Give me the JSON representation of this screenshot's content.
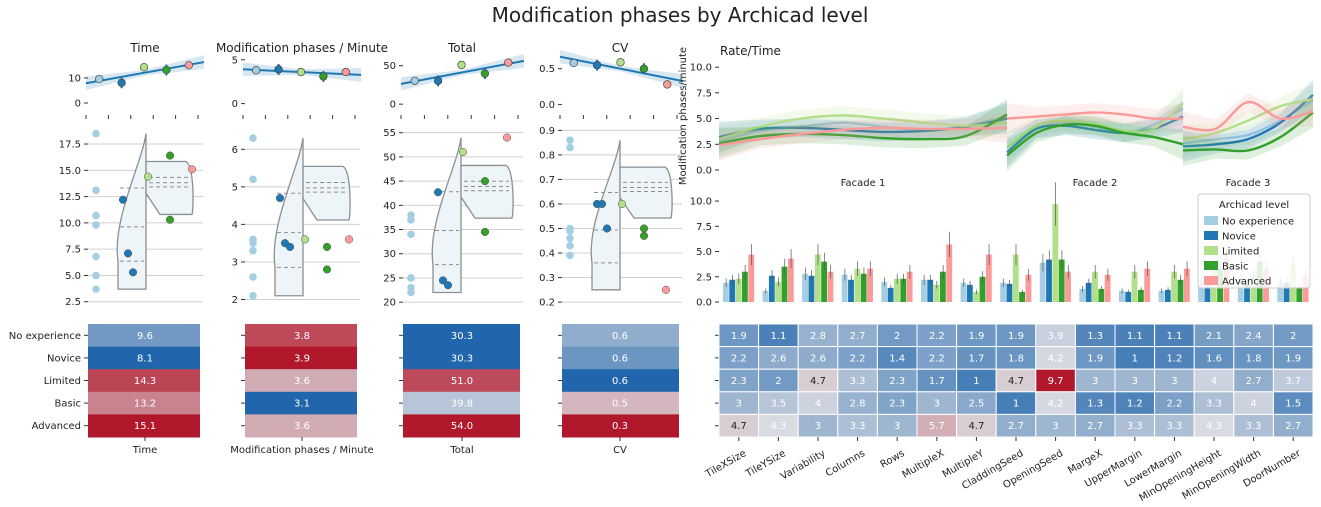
{
  "figure_title": "Modification phases by Archicad level",
  "levels": [
    "No experience",
    "Novice",
    "Limited",
    "Basic",
    "Advanced"
  ],
  "colors": {
    "No experience": "#a6cee3",
    "Novice": "#1f78b4",
    "Limited": "#b2df8a",
    "Basic": "#33a02c",
    "Advanced": "#fb9a99",
    "heat_low": "#2166ac",
    "heat_mid": "#dcdde3",
    "heat_high": "#b2182b",
    "trend": "#1f78b4",
    "violin_fill": "#eef5f8",
    "violin_edge": "#8a8f93"
  },
  "chart_data": [
    {
      "type": "line",
      "panel": "trend-time",
      "title": "Time",
      "x": [
        "No experience",
        "Novice",
        "Limited",
        "Basic",
        "Advanced"
      ],
      "y": [
        9.6,
        8.1,
        14.3,
        13.2,
        15.1
      ],
      "ylim": [
        -2,
        18
      ],
      "yticks": [
        0,
        10
      ]
    },
    {
      "type": "line",
      "panel": "trend-rate",
      "title": "Modification phases / Minute",
      "x": [
        "No experience",
        "Novice",
        "Limited",
        "Basic",
        "Advanced"
      ],
      "y": [
        3.8,
        3.9,
        3.6,
        3.1,
        3.6
      ],
      "ylim": [
        -0.5,
        5.2
      ],
      "yticks": [
        0,
        5
      ]
    },
    {
      "type": "line",
      "panel": "trend-total",
      "title": "Total",
      "x": [
        "No experience",
        "Novice",
        "Limited",
        "Basic",
        "Advanced"
      ],
      "y": [
        30.3,
        30.3,
        51.0,
        39.8,
        54.0
      ],
      "ylim": [
        -5,
        60
      ],
      "yticks": [
        0,
        50
      ]
    },
    {
      "type": "line",
      "panel": "trend-cv",
      "title": "CV",
      "x": [
        "No experience",
        "Novice",
        "Limited",
        "Basic",
        "Advanced"
      ],
      "y": [
        0.58,
        0.55,
        0.59,
        0.5,
        0.28
      ],
      "ylim": [
        -0.05,
        0.65
      ],
      "yticks": [
        0.0,
        0.5
      ],
      "ytick_labels": [
        "0.0",
        "0.5"
      ]
    },
    {
      "type": "scatter",
      "panel": "dist-time",
      "ylim": [
        2,
        19.5
      ],
      "yticks": [
        2.5,
        5.0,
        7.5,
        10.0,
        12.5,
        15.0,
        17.5
      ],
      "ytick_labels": [
        "2.5",
        "5.0",
        "7.5",
        "10.0",
        "12.5",
        "15.0",
        "17.5"
      ],
      "points": {
        "No experience": [
          18.5,
          13.1,
          10.7,
          9.8,
          6.8,
          5.0,
          3.7
        ],
        "Novice": [
          12.2,
          7.1,
          5.3
        ],
        "Limited": [
          14.4
        ],
        "Basic": [
          16.4,
          10.3
        ],
        "Advanced": [
          15.1
        ]
      }
    },
    {
      "type": "scatter",
      "panel": "dist-rate",
      "ylim": [
        1.8,
        6.7
      ],
      "yticks": [
        2,
        3,
        4,
        5,
        6
      ],
      "ytick_labels": [
        "2",
        "3",
        "4",
        "5",
        "6"
      ],
      "points": {
        "No experience": [
          6.3,
          5.2,
          3.5,
          3.3,
          2.6,
          2.1,
          3.6
        ],
        "Novice": [
          4.7,
          3.5,
          3.4
        ],
        "Limited": [
          3.6
        ],
        "Basic": [
          3.4,
          2.8
        ],
        "Advanced": [
          3.6
        ]
      }
    },
    {
      "type": "scatter",
      "panel": "dist-total",
      "ylim": [
        19,
        57
      ],
      "yticks": [
        20,
        25,
        30,
        35,
        40,
        45,
        50,
        55
      ],
      "ytick_labels": [
        "20",
        "25",
        "30",
        "35",
        "40",
        "45",
        "50",
        "55"
      ],
      "points": {
        "No experience": [
          38,
          37,
          34,
          25,
          22,
          23
        ],
        "Novice": [
          42.7,
          24.5,
          23.5
        ],
        "Limited": [
          51
        ],
        "Basic": [
          45,
          34.5
        ],
        "Advanced": [
          54
        ]
      }
    },
    {
      "type": "scatter",
      "panel": "dist-cv",
      "ylim": [
        0.18,
        0.93
      ],
      "yticks": [
        0.2,
        0.3,
        0.4,
        0.5,
        0.6,
        0.7,
        0.8,
        0.9
      ],
      "ytick_labels": [
        "0.2",
        "0.3",
        "0.4",
        "0.5",
        "0.6",
        "0.7",
        "0.8",
        "0.9"
      ],
      "points": {
        "No experience": [
          0.86,
          0.83,
          0.5,
          0.49,
          0.46,
          0.43,
          0.39
        ],
        "Novice": [
          0.6,
          0.6,
          0.5
        ],
        "Limited": [
          0.6
        ],
        "Basic": [
          0.5,
          0.47
        ],
        "Advanced": [
          0.25
        ]
      }
    },
    {
      "type": "heatmap",
      "panel": "heat-time",
      "xlabel": "Time",
      "rows": [
        "No experience",
        "Novice",
        "Limited",
        "Basic",
        "Advanced"
      ],
      "values": [
        [
          9.6
        ],
        [
          8.1
        ],
        [
          14.3
        ],
        [
          13.2
        ],
        [
          15.1
        ]
      ],
      "labels": [
        [
          "9.6"
        ],
        [
          "8.1"
        ],
        [
          "14.3"
        ],
        [
          "13.2"
        ],
        [
          "15.1"
        ]
      ]
    },
    {
      "type": "heatmap",
      "panel": "heat-rate",
      "xlabel": "Modification phases / Minute",
      "rows": [
        "No experience",
        "Novice",
        "Limited",
        "Basic",
        "Advanced"
      ],
      "values": [
        [
          3.8
        ],
        [
          3.9
        ],
        [
          3.6
        ],
        [
          3.1
        ],
        [
          3.6
        ]
      ],
      "labels": [
        [
          "3.8"
        ],
        [
          "3.9"
        ],
        [
          "3.6"
        ],
        [
          "3.1"
        ],
        [
          "3.6"
        ]
      ]
    },
    {
      "type": "heatmap",
      "panel": "heat-total",
      "xlabel": "Total",
      "rows": [
        "No experience",
        "Novice",
        "Limited",
        "Basic",
        "Advanced"
      ],
      "values": [
        [
          30.3
        ],
        [
          30.3
        ],
        [
          51.0
        ],
        [
          39.8
        ],
        [
          54.0
        ]
      ],
      "labels": [
        [
          "30.3"
        ],
        [
          "30.3"
        ],
        [
          "51.0"
        ],
        [
          "39.8"
        ],
        [
          "54.0"
        ]
      ]
    },
    {
      "type": "heatmap",
      "panel": "heat-cv",
      "xlabel": "CV",
      "rows": [
        "No experience",
        "Novice",
        "Limited",
        "Basic",
        "Advanced"
      ],
      "values": [
        [
          0.6
        ],
        [
          0.6
        ],
        [
          0.6
        ],
        [
          0.5
        ],
        [
          0.3
        ]
      ],
      "shading": [
        [
          0.3
        ],
        [
          0.2
        ],
        [
          0.0
        ],
        [
          0.6
        ],
        [
          1.0
        ]
      ],
      "labels": [
        [
          "0.6"
        ],
        [
          "0.6"
        ],
        [
          "0.6"
        ],
        [
          "0.5"
        ],
        [
          "0.3"
        ]
      ]
    },
    {
      "type": "line",
      "panel": "rate-curves",
      "title": "Rate/Time",
      "ylabel": "Modification phases/minute",
      "facets": [
        "Facade 1",
        "Facade 2",
        "Facade 3"
      ],
      "ylim": [
        0,
        10.5
      ],
      "yticks": [
        0.0,
        2.5,
        5.0,
        7.5,
        10.0
      ],
      "ytick_labels": [
        "0.0",
        "2.5",
        "5.0",
        "7.5",
        "10.0"
      ],
      "series": [
        {
          "level": "No experience",
          "values": [
            [
              2.8,
              3.8,
              4.2,
              4.6,
              4.2,
              3.9,
              4.3,
              5.2
            ],
            [
              2.2,
              4.0,
              4.6,
              4.2,
              3.6,
              4.4,
              6.0
            ],
            [
              2.6,
              3.0,
              3.4,
              4.8,
              6.8
            ]
          ]
        },
        {
          "level": "Novice",
          "values": [
            [
              3.2,
              4.0,
              4.1,
              3.9,
              3.7,
              3.8,
              4.2,
              5.0
            ],
            [
              1.7,
              4.0,
              4.3,
              3.9,
              3.6,
              4.0,
              5.2
            ],
            [
              2.3,
              2.5,
              3.0,
              4.6,
              7.3
            ]
          ]
        },
        {
          "level": "Limited",
          "values": [
            [
              3.0,
              4.2,
              5.0,
              5.3,
              5.0,
              4.6,
              4.3,
              4.6
            ],
            [
              2.2,
              4.3,
              4.8,
              4.5,
              3.8,
              4.0,
              6.5
            ],
            [
              3.0,
              3.6,
              4.8,
              6.2,
              6.9
            ]
          ]
        },
        {
          "level": "Basic",
          "values": [
            [
              2.6,
              3.3,
              3.5,
              3.4,
              3.1,
              3.0,
              3.3,
              5.4
            ],
            [
              1.4,
              3.6,
              4.4,
              4.3,
              3.6,
              3.2,
              2.5
            ],
            [
              1.9,
              2.0,
              1.9,
              3.2,
              5.6
            ]
          ]
        },
        {
          "level": "Advanced",
          "values": [
            [
              2.4,
              3.0,
              3.5,
              3.9,
              4.1,
              4.0,
              4.0,
              4.1
            ],
            [
              5.0,
              5.2,
              5.4,
              5.6,
              5.4,
              5.0,
              5.0
            ],
            [
              4.2,
              4.0,
              6.6,
              5.0,
              5.7
            ]
          ]
        }
      ]
    },
    {
      "type": "bar",
      "panel": "params-bars",
      "yticks": [
        0.0,
        2.5,
        5.0,
        7.5,
        10.0
      ],
      "ytick_labels": [
        "0.0",
        "2.5",
        "5.0",
        "7.5",
        "10.0"
      ],
      "ylim": [
        0,
        10.5
      ],
      "legend_title": "Archicad level",
      "legend_position": "right",
      "categories": [
        "TileXSize",
        "TileYSize",
        "Variability",
        "Columns",
        "Rows",
        "MultipleX",
        "MultipleY",
        "CladdingSeed",
        "OpeningSeed",
        "MargeX",
        "UpperMargin",
        "LowerMargin",
        "MinOpeningHeight",
        "MinOpeningWidth",
        "DoorNumber"
      ],
      "series": [
        {
          "name": "No experience",
          "values": [
            1.9,
            1.1,
            2.8,
            2.7,
            2.0,
            2.2,
            1.9,
            1.9,
            3.9,
            1.3,
            1.1,
            1.1,
            2.1,
            2.4,
            2.0
          ]
        },
        {
          "name": "Novice",
          "values": [
            2.2,
            2.6,
            2.6,
            2.2,
            1.4,
            2.2,
            1.7,
            1.8,
            4.2,
            1.9,
            1.0,
            1.2,
            1.6,
            1.8,
            1.9
          ]
        },
        {
          "name": "Limited",
          "values": [
            2.3,
            2.0,
            4.7,
            3.3,
            2.3,
            1.7,
            1.0,
            4.7,
            9.7,
            3.0,
            3.0,
            3.0,
            4.0,
            2.7,
            3.7
          ]
        },
        {
          "name": "Basic",
          "values": [
            3.0,
            3.5,
            4.0,
            2.8,
            2.3,
            3.0,
            2.5,
            1.0,
            4.2,
            1.3,
            1.2,
            2.2,
            3.3,
            4.0,
            1.5
          ]
        },
        {
          "name": "Advanced",
          "values": [
            4.7,
            4.3,
            3.0,
            3.3,
            3.0,
            5.7,
            4.7,
            2.7,
            3.0,
            2.7,
            3.3,
            3.3,
            4.3,
            3.3,
            2.7
          ]
        }
      ]
    },
    {
      "type": "heatmap",
      "panel": "params-heat",
      "rows": [
        "No experience",
        "Novice",
        "Limited",
        "Basic",
        "Advanced"
      ],
      "columns": [
        "TileXSize",
        "TileYSize",
        "Variability",
        "Columns",
        "Rows",
        "MultipleX",
        "MultipleY",
        "CladdingSeed",
        "OpeningSeed",
        "MargeX",
        "UpperMargin",
        "LowerMargin",
        "MinOpeningHeight",
        "MinOpeningWidth",
        "DoorNumber"
      ],
      "values": [
        [
          1.9,
          1.1,
          2.8,
          2.7,
          2.0,
          2.2,
          1.9,
          1.9,
          3.9,
          1.3,
          1.1,
          1.1,
          2.1,
          2.4,
          2.0
        ],
        [
          2.2,
          2.6,
          2.6,
          2.2,
          1.4,
          2.2,
          1.7,
          1.8,
          4.2,
          1.9,
          1.0,
          1.2,
          1.6,
          1.8,
          1.9
        ],
        [
          2.3,
          2.0,
          4.7,
          3.3,
          2.3,
          1.7,
          1.0,
          4.7,
          9.7,
          3.0,
          3.0,
          3.0,
          4.0,
          2.7,
          3.7
        ],
        [
          3.0,
          3.5,
          4.0,
          2.8,
          2.3,
          3.0,
          2.5,
          1.0,
          4.2,
          1.3,
          1.2,
          2.2,
          3.3,
          4.0,
          1.5
        ],
        [
          4.7,
          4.3,
          3.0,
          3.3,
          3.0,
          5.7,
          4.7,
          2.7,
          3.0,
          2.7,
          3.3,
          3.3,
          4.3,
          3.3,
          2.7
        ]
      ],
      "labels": [
        [
          "1.9",
          "1.1",
          "2.8",
          "2.7",
          "2",
          "2.2",
          "1.9",
          "1.9",
          "3.9",
          "1.3",
          "1.1",
          "1.1",
          "2.1",
          "2.4",
          "2"
        ],
        [
          "2.2",
          "2.6",
          "2.6",
          "2.2",
          "1.4",
          "2.2",
          "1.7",
          "1.8",
          "4.2",
          "1.9",
          "1",
          "1.2",
          "1.6",
          "1.8",
          "1.9"
        ],
        [
          "2.3",
          "2",
          "4.7",
          "3.3",
          "2.3",
          "1.7",
          "1",
          "4.7",
          "9.7",
          "3",
          "3",
          "3",
          "4",
          "2.7",
          "3.7"
        ],
        [
          "3",
          "3.5",
          "4",
          "2.8",
          "2.3",
          "3",
          "2.5",
          "1",
          "4.2",
          "1.3",
          "1.2",
          "2.2",
          "3.3",
          "4",
          "1.5"
        ],
        [
          "4.7",
          "4.3",
          "3",
          "3.3",
          "3",
          "5.7",
          "4.7",
          "2.7",
          "3",
          "2.7",
          "3.3",
          "3.3",
          "4.3",
          "3.3",
          "2.7"
        ]
      ]
    }
  ]
}
